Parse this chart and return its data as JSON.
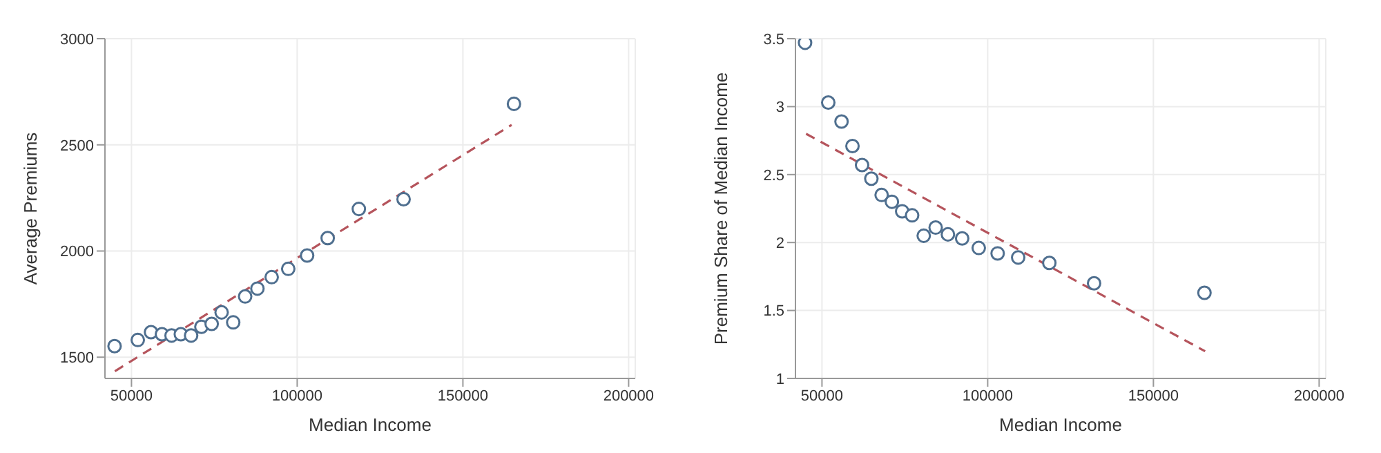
{
  "chart_data": [
    {
      "type": "scatter",
      "xlabel": "Median Income",
      "ylabel": "Average Premiums",
      "xlim": [
        42000,
        202000
      ],
      "ylim": [
        1400,
        3000
      ],
      "xticks": [
        50000,
        100000,
        150000,
        200000
      ],
      "yticks": [
        1500,
        2000,
        2500,
        3000
      ],
      "grid": true,
      "marker": "circle",
      "series": [
        {
          "color": "#4f6f8f",
          "x": [
            44900,
            51900,
            55900,
            59200,
            62100,
            64900,
            68000,
            71100,
            74200,
            77200,
            80700,
            84300,
            88000,
            92300,
            97300,
            103000,
            109200,
            118600,
            132100,
            165400
          ],
          "values": [
            1552,
            1581,
            1618,
            1608,
            1602,
            1608,
            1602,
            1643,
            1657,
            1711,
            1664,
            1786,
            1823,
            1877,
            1916,
            1979,
            2061,
            2198,
            2244,
            2693
          ]
        },
        {
          "type": "line",
          "color": "#b5545c",
          "line_style": "dashed",
          "marker": "none",
          "x": [
            45000,
            164700
          ],
          "values": [
            1434,
            2594
          ]
        }
      ]
    },
    {
      "type": "scatter",
      "xlabel": "Median Income",
      "ylabel": "Premium Share of Median Income",
      "xlim": [
        42000,
        202000
      ],
      "ylim": [
        1,
        3.5
      ],
      "xticks": [
        50000,
        100000,
        150000,
        200000
      ],
      "yticks": [
        1,
        1.5,
        2,
        2.5,
        3,
        3.5
      ],
      "grid": true,
      "marker": "circle",
      "series": [
        {
          "color": "#4f6f8f",
          "x": [
            44900,
            51900,
            55900,
            59200,
            62100,
            64900,
            68000,
            71100,
            74200,
            77200,
            80700,
            84300,
            88000,
            92300,
            97300,
            103000,
            109200,
            118600,
            132100,
            165400
          ],
          "values": [
            3.47,
            3.03,
            2.89,
            2.71,
            2.57,
            2.47,
            2.35,
            2.3,
            2.23,
            2.2,
            2.05,
            2.11,
            2.06,
            2.03,
            1.96,
            1.92,
            1.89,
            1.85,
            1.7,
            1.63
          ]
        },
        {
          "type": "line",
          "color": "#b5545c",
          "line_style": "dashed",
          "marker": "none",
          "x": [
            45200,
            165600
          ],
          "values": [
            2.8,
            1.2
          ]
        }
      ]
    }
  ]
}
